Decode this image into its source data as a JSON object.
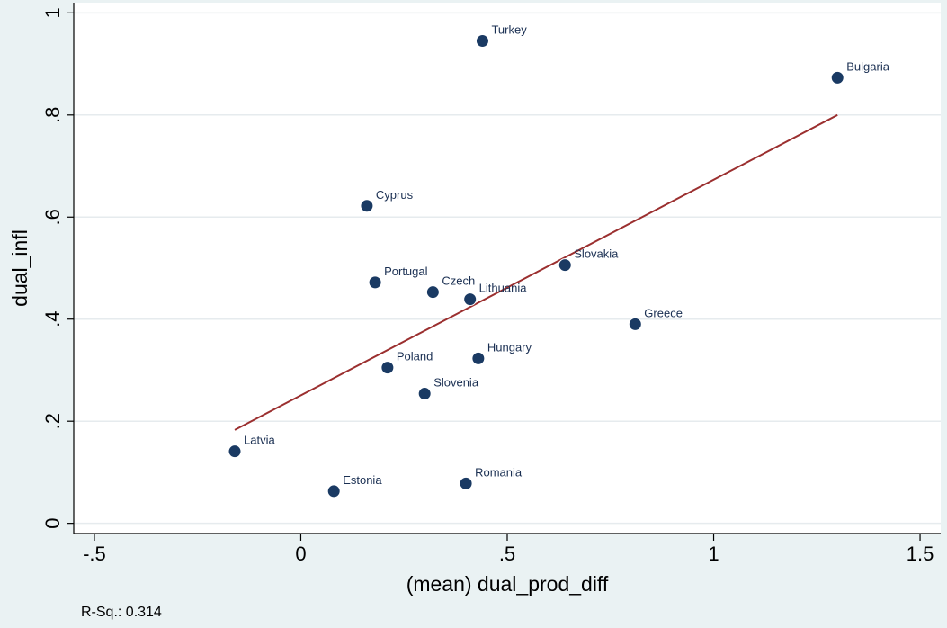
{
  "chart_data": {
    "type": "scatter",
    "title": "",
    "xlabel": "(mean) dual_prod_diff",
    "ylabel": "dual_infl",
    "xlim": [
      -0.55,
      1.55
    ],
    "ylim": [
      -0.02,
      1.02
    ],
    "xticks": [
      -0.5,
      0,
      0.5,
      1,
      1.5
    ],
    "xtick_labels": [
      "-.5",
      "0",
      ".5",
      "1",
      "1.5"
    ],
    "yticks": [
      0,
      0.2,
      0.4,
      0.6,
      0.8,
      1
    ],
    "ytick_labels": [
      "0",
      ".2",
      ".4",
      ".6",
      ".8",
      "1"
    ],
    "grid": true,
    "points": [
      {
        "label": "Turkey",
        "x": 0.44,
        "y": 0.945
      },
      {
        "label": "Bulgaria",
        "x": 1.3,
        "y": 0.873
      },
      {
        "label": "Cyprus",
        "x": 0.16,
        "y": 0.622
      },
      {
        "label": "Slovakia",
        "x": 0.64,
        "y": 0.506
      },
      {
        "label": "Portugal",
        "x": 0.18,
        "y": 0.472
      },
      {
        "label": "Czech",
        "x": 0.32,
        "y": 0.453
      },
      {
        "label": "Lithuania",
        "x": 0.41,
        "y": 0.439
      },
      {
        "label": "Greece",
        "x": 0.81,
        "y": 0.39
      },
      {
        "label": "Hungary",
        "x": 0.43,
        "y": 0.323
      },
      {
        "label": "Poland",
        "x": 0.21,
        "y": 0.305
      },
      {
        "label": "Slovenia",
        "x": 0.3,
        "y": 0.254
      },
      {
        "label": "Latvia",
        "x": -0.16,
        "y": 0.141
      },
      {
        "label": "Estonia",
        "x": 0.08,
        "y": 0.063
      },
      {
        "label": "Romania",
        "x": 0.4,
        "y": 0.078
      }
    ],
    "fit_line": {
      "x": [
        -0.16,
        1.3
      ],
      "y": [
        0.183,
        0.8
      ]
    },
    "colors": {
      "point": "#1a3a63",
      "fit_line": "#9b2f2f",
      "plot_bg": "#ffffff",
      "outer_bg": "#eaf2f3",
      "grid": "#e6ebee"
    }
  },
  "annotation": {
    "r_squared": "R-Sq.: 0.314"
  }
}
